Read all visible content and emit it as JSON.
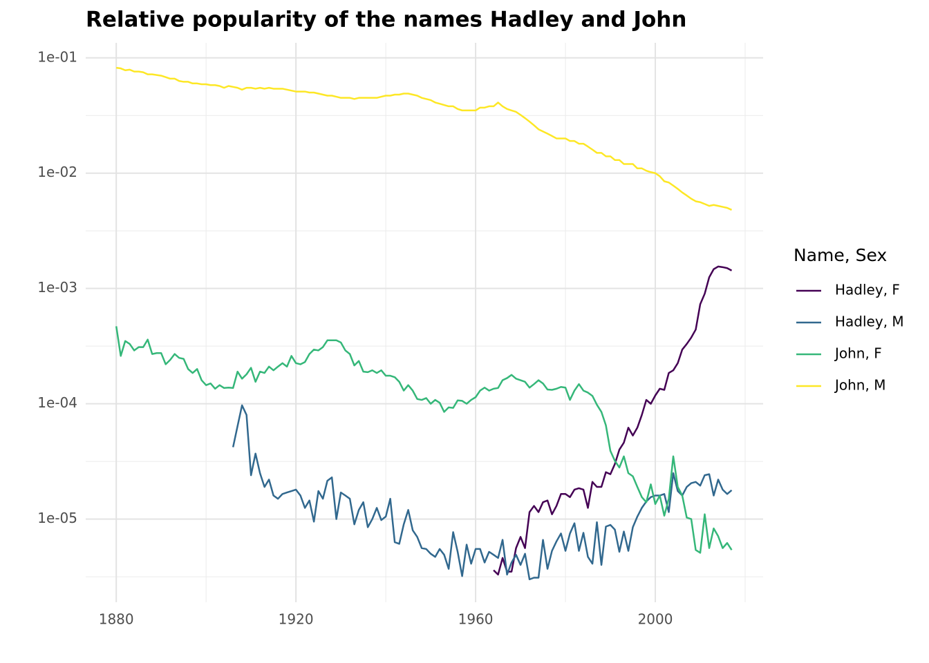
{
  "chart_data": {
    "type": "line",
    "title": "Relative popularity of the names Hadley and John",
    "legend_title": "Name, Sex",
    "legend_position": "right",
    "log_y": true,
    "grid": true,
    "xlim": [
      1873.2,
      2024
    ],
    "xticks": [
      1880,
      1920,
      1960,
      2000
    ],
    "x_minor_ticks": [
      1900,
      1940,
      1980,
      2020
    ],
    "ylim": [
      1.9e-06,
      0.135
    ],
    "yticks": [
      {
        "value": 1e-05,
        "label": "1e-05"
      },
      {
        "value": 0.0001,
        "label": "1e-04"
      },
      {
        "value": 0.001,
        "label": "1e-03"
      },
      {
        "value": 0.01,
        "label": "1e-02"
      },
      {
        "value": 0.1,
        "label": "1e-01"
      }
    ],
    "y_minor_ticks": [
      3.162e-06,
      3.162e-05,
      0.0003162,
      0.003162,
      0.03162
    ],
    "x": [
      1880,
      1881,
      1882,
      1883,
      1884,
      1885,
      1886,
      1887,
      1888,
      1889,
      1890,
      1891,
      1892,
      1893,
      1894,
      1895,
      1896,
      1897,
      1898,
      1899,
      1900,
      1901,
      1902,
      1903,
      1904,
      1905,
      1906,
      1907,
      1908,
      1909,
      1910,
      1911,
      1912,
      1913,
      1914,
      1915,
      1916,
      1917,
      1918,
      1919,
      1920,
      1921,
      1922,
      1923,
      1924,
      1925,
      1926,
      1927,
      1928,
      1929,
      1930,
      1931,
      1932,
      1933,
      1934,
      1935,
      1936,
      1937,
      1938,
      1939,
      1940,
      1941,
      1942,
      1943,
      1944,
      1945,
      1946,
      1947,
      1948,
      1949,
      1950,
      1951,
      1952,
      1953,
      1954,
      1955,
      1956,
      1957,
      1958,
      1959,
      1960,
      1961,
      1962,
      1963,
      1964,
      1965,
      1966,
      1967,
      1968,
      1969,
      1970,
      1971,
      1972,
      1973,
      1974,
      1975,
      1976,
      1977,
      1978,
      1979,
      1980,
      1981,
      1982,
      1983,
      1984,
      1985,
      1986,
      1987,
      1988,
      1989,
      1990,
      1991,
      1992,
      1993,
      1994,
      1995,
      1996,
      1997,
      1998,
      1999,
      2000,
      2001,
      2002,
      2003,
      2004,
      2005,
      2006,
      2007,
      2008,
      2009,
      2010,
      2011,
      2012,
      2013,
      2014,
      2015,
      2016,
      2017
    ],
    "series": [
      {
        "name": "Hadley, F",
        "color": "#440154",
        "values": [
          null,
          null,
          null,
          null,
          null,
          null,
          null,
          null,
          null,
          null,
          null,
          null,
          null,
          null,
          null,
          null,
          null,
          null,
          null,
          null,
          null,
          null,
          null,
          null,
          null,
          null,
          null,
          null,
          null,
          null,
          null,
          null,
          null,
          null,
          null,
          null,
          null,
          null,
          null,
          null,
          null,
          null,
          null,
          null,
          null,
          null,
          null,
          null,
          null,
          null,
          null,
          null,
          null,
          null,
          null,
          null,
          null,
          null,
          null,
          null,
          null,
          null,
          null,
          null,
          null,
          null,
          null,
          null,
          null,
          null,
          null,
          null,
          null,
          null,
          null,
          null,
          null,
          null,
          null,
          null,
          null,
          null,
          null,
          null,
          3.6e-06,
          3.3e-06,
          4.6e-06,
          3.5e-06,
          3.5e-06,
          5.6e-06,
          7e-06,
          5.6e-06,
          1.15e-05,
          1.3e-05,
          1.15e-05,
          1.4e-05,
          1.45e-05,
          1.1e-05,
          1.3e-05,
          1.65e-05,
          1.65e-05,
          1.55e-05,
          1.8e-05,
          1.85e-05,
          1.8e-05,
          1.25e-05,
          2.1e-05,
          1.9e-05,
          1.9e-05,
          2.55e-05,
          2.45e-05,
          3e-05,
          4e-05,
          4.6e-05,
          6.2e-05,
          5.3e-05,
          6.2e-05,
          8e-05,
          0.000108,
          0.0001,
          0.000118,
          0.000135,
          0.000132,
          0.000185,
          0.000195,
          0.000225,
          0.000295,
          0.00033,
          0.000375,
          0.00044,
          0.00073,
          0.0009,
          0.00125,
          0.00147,
          0.00155,
          0.00153,
          0.0015,
          0.00143
        ]
      },
      {
        "name": "Hadley, M",
        "color": "#31688e",
        "values": [
          null,
          null,
          null,
          null,
          null,
          null,
          null,
          null,
          null,
          null,
          null,
          null,
          null,
          null,
          null,
          null,
          null,
          null,
          null,
          null,
          null,
          null,
          null,
          null,
          null,
          null,
          4.2e-05,
          6.4e-05,
          9.7e-05,
          8e-05,
          2.4e-05,
          3.7e-05,
          2.5e-05,
          1.9e-05,
          2.2e-05,
          1.6e-05,
          1.5e-05,
          1.65e-05,
          1.7e-05,
          1.75e-05,
          1.8e-05,
          1.6e-05,
          1.25e-05,
          1.45e-05,
          9.5e-06,
          1.75e-05,
          1.5e-05,
          2.15e-05,
          2.3e-05,
          1e-05,
          1.7e-05,
          1.6e-05,
          1.5e-05,
          9e-06,
          1.2e-05,
          1.4e-05,
          8.5e-06,
          1e-05,
          1.25e-05,
          9.8e-06,
          1.05e-05,
          1.5e-05,
          6.3e-06,
          6.1e-06,
          9e-06,
          1.2e-05,
          8e-06,
          7e-06,
          5.6e-06,
          5.5e-06,
          5e-06,
          4.7e-06,
          5.5e-06,
          4.9e-06,
          3.7e-06,
          7.7e-06,
          5.2e-06,
          3.2e-06,
          6e-06,
          4.1e-06,
          5.5e-06,
          5.5e-06,
          4.2e-06,
          5.2e-06,
          4.9e-06,
          4.6e-06,
          6.6e-06,
          3.3e-06,
          4.2e-06,
          4.9e-06,
          4e-06,
          5e-06,
          3e-06,
          3.1e-06,
          3.1e-06,
          6.6e-06,
          3.7e-06,
          5.3e-06,
          6.4e-06,
          7.5e-06,
          5.3e-06,
          7.5e-06,
          9.2e-06,
          5.3e-06,
          7.6e-06,
          4.7e-06,
          4.1e-06,
          9.4e-06,
          4e-06,
          8.6e-06,
          8.9e-06,
          8.1e-06,
          5.2e-06,
          7.8e-06,
          5.3e-06,
          8.5e-06,
          1.05e-05,
          1.25e-05,
          1.42e-05,
          1.55e-05,
          1.6e-05,
          1.6e-05,
          1.65e-05,
          1.15e-05,
          2.5e-05,
          1.75e-05,
          1.6e-05,
          1.9e-05,
          2.05e-05,
          2.1e-05,
          1.95e-05,
          2.4e-05,
          2.45e-05,
          1.6e-05,
          2.2e-05,
          1.8e-05,
          1.65e-05,
          1.78e-05
        ]
      },
      {
        "name": "John, F",
        "color": "#35b779",
        "values": [
          0.00047,
          0.00026,
          0.00035,
          0.00033,
          0.00029,
          0.00031,
          0.00031,
          0.00036,
          0.00027,
          0.000275,
          0.000275,
          0.00022,
          0.00024,
          0.00027,
          0.00025,
          0.000245,
          0.0002,
          0.000185,
          0.0002,
          0.00016,
          0.000145,
          0.00015,
          0.000135,
          0.000145,
          0.000137,
          0.000138,
          0.000137,
          0.00019,
          0.000165,
          0.00018,
          0.000205,
          0.000155,
          0.00019,
          0.000185,
          0.00021,
          0.000195,
          0.00021,
          0.000225,
          0.00021,
          0.00026,
          0.000225,
          0.00022,
          0.00023,
          0.00027,
          0.000295,
          0.00029,
          0.00031,
          0.000355,
          0.000355,
          0.000355,
          0.00034,
          0.00029,
          0.00027,
          0.000215,
          0.000235,
          0.00019,
          0.000188,
          0.000195,
          0.000185,
          0.000195,
          0.000175,
          0.000175,
          0.00017,
          0.000155,
          0.00013,
          0.000145,
          0.00013,
          0.00011,
          0.000108,
          0.000112,
          0.0001,
          0.000108,
          0.000102,
          8.5e-05,
          9.3e-05,
          9.2e-05,
          0.000107,
          0.000106,
          0.0001,
          0.000108,
          0.000114,
          0.00013,
          0.000138,
          0.00013,
          0.000135,
          0.000137,
          0.00016,
          0.000167,
          0.000178,
          0.000165,
          0.00016,
          0.000155,
          0.000138,
          0.000148,
          0.00016,
          0.00015,
          0.000133,
          0.000132,
          0.000135,
          0.00014,
          0.000138,
          0.000108,
          0.00013,
          0.000148,
          0.00013,
          0.000125,
          0.000117,
          9.8e-05,
          8.5e-05,
          6.5e-05,
          3.9e-05,
          3.2e-05,
          2.8e-05,
          3.5e-05,
          2.5e-05,
          2.35e-05,
          1.9e-05,
          1.55e-05,
          1.4e-05,
          2e-05,
          1.35e-05,
          1.6e-05,
          1.07e-05,
          1.5e-05,
          3.5e-05,
          1.9e-05,
          1.6e-05,
          1.03e-05,
          1e-05,
          5.4e-06,
          5.1e-06,
          1.1e-05,
          5.6e-06,
          8.3e-06,
          7.1e-06,
          5.6e-06,
          6.2e-06,
          5.4e-06
        ]
      },
      {
        "name": "John, M",
        "color": "#fde725",
        "values": [
          0.082,
          0.081,
          0.078,
          0.079,
          0.076,
          0.076,
          0.075,
          0.072,
          0.072,
          0.071,
          0.07,
          0.068,
          0.066,
          0.066,
          0.063,
          0.062,
          0.062,
          0.06,
          0.06,
          0.059,
          0.059,
          0.058,
          0.058,
          0.057,
          0.055,
          0.057,
          0.056,
          0.055,
          0.053,
          0.055,
          0.055,
          0.054,
          0.055,
          0.054,
          0.055,
          0.054,
          0.054,
          0.054,
          0.053,
          0.052,
          0.051,
          0.051,
          0.051,
          0.05,
          0.05,
          0.049,
          0.048,
          0.047,
          0.047,
          0.046,
          0.045,
          0.045,
          0.045,
          0.044,
          0.045,
          0.045,
          0.045,
          0.045,
          0.045,
          0.046,
          0.047,
          0.047,
          0.048,
          0.048,
          0.049,
          0.049,
          0.048,
          0.047,
          0.045,
          0.044,
          0.043,
          0.041,
          0.04,
          0.039,
          0.038,
          0.038,
          0.036,
          0.035,
          0.035,
          0.035,
          0.035,
          0.037,
          0.037,
          0.038,
          0.038,
          0.041,
          0.038,
          0.036,
          0.035,
          0.034,
          0.032,
          0.03,
          0.028,
          0.026,
          0.024,
          0.023,
          0.022,
          0.021,
          0.02,
          0.02,
          0.02,
          0.019,
          0.019,
          0.018,
          0.018,
          0.017,
          0.016,
          0.015,
          0.015,
          0.014,
          0.014,
          0.013,
          0.013,
          0.012,
          0.012,
          0.012,
          0.011,
          0.011,
          0.0105,
          0.0102,
          0.01,
          0.0094,
          0.0085,
          0.0083,
          0.0078,
          0.0073,
          0.0068,
          0.0064,
          0.006,
          0.0057,
          0.0056,
          0.0054,
          0.0052,
          0.0053,
          0.0052,
          0.0051,
          0.005,
          0.0048
        ]
      }
    ]
  }
}
